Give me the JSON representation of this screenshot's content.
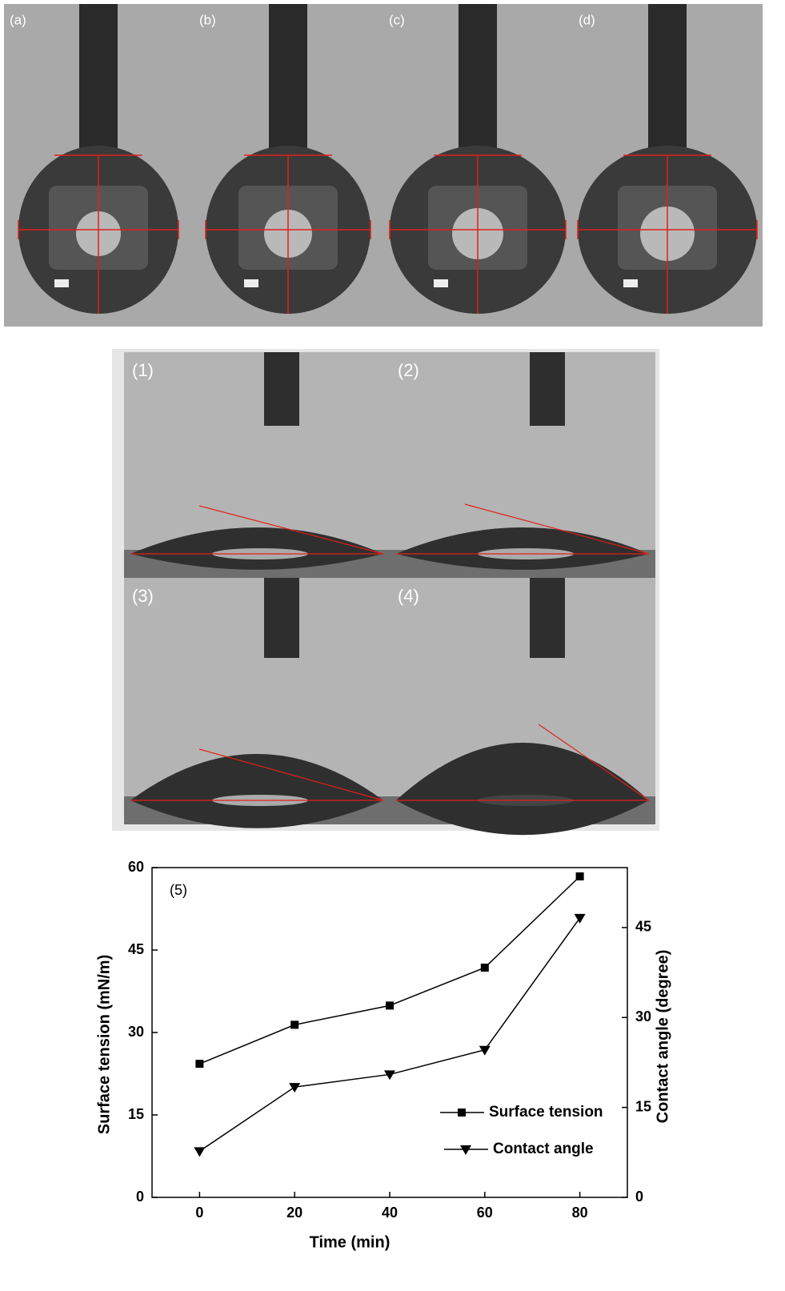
{
  "top_panels": {
    "labels": [
      "(a)",
      "(b)",
      "(c)",
      "(d)"
    ]
  },
  "middle_panels": {
    "labels": [
      "(1)",
      "(2)",
      "(3)",
      "(4)"
    ]
  },
  "chart_data": {
    "type": "line",
    "annotation": "(5)",
    "x_label": "Time (min)",
    "y_label": "Surface tension (mN/m)",
    "y2_label": "Contact angle (degree)",
    "x": [
      0,
      20,
      40,
      60,
      80
    ],
    "xlim": [
      -10,
      90
    ],
    "xticks": [
      0,
      20,
      40,
      60,
      80
    ],
    "ylim": [
      0,
      60
    ],
    "yticks": [
      0,
      15,
      30,
      45,
      60
    ],
    "y2lim": [
      0,
      55
    ],
    "y2ticks": [
      0,
      15,
      30,
      45
    ],
    "grid": false,
    "series": [
      {
        "name": "Surface tension",
        "color": "#000000",
        "marker": "square",
        "values": [
          24.3,
          31.4,
          34.9,
          41.8,
          58.4
        ]
      },
      {
        "name": "Contact angle",
        "color": "#000000",
        "marker": "triangle-down",
        "axis": "y2",
        "values": [
          7.7,
          18.4,
          20.5,
          24.6,
          46.6
        ]
      }
    ]
  }
}
